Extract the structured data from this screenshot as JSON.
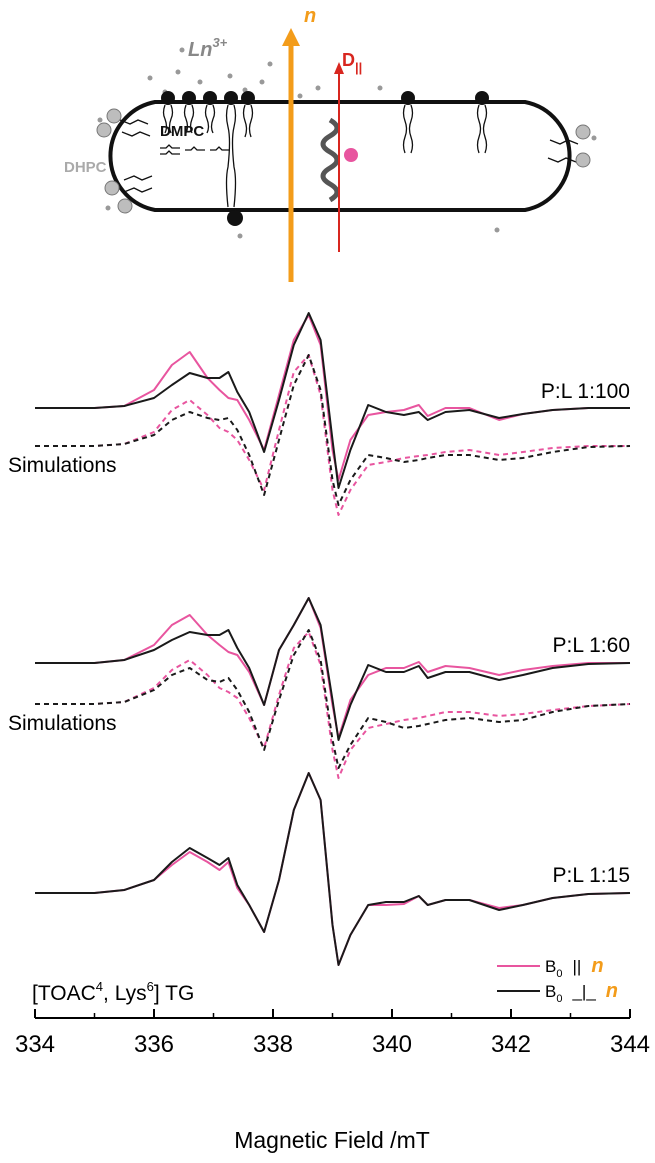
{
  "schematic": {
    "ion_label": "Ln",
    "ion_charge": "3+",
    "normal_label": "n",
    "director_label": "D",
    "director_subscript": "||",
    "dmpc": "DMPC",
    "dhpc": "DHPC"
  },
  "chart_data": {
    "type": "line",
    "xlabel": "Magnetic Field /mT",
    "xlim": [
      334,
      344
    ],
    "xticks": [
      334,
      336,
      338,
      340,
      342,
      344
    ],
    "ylim": [
      0,
      720
    ],
    "panel_labels": [
      "P:L 1:100",
      "P:L 1:60",
      "P:L 1:15"
    ],
    "simulation_label": "Simulations",
    "compound": [
      "[TOAC",
      "4",
      ", Lys",
      "6",
      "] TG"
    ],
    "legend": [
      {
        "symbol": "B",
        "subscript": "0",
        "relation": "||",
        "vector": "n",
        "color": "#e8559f"
      },
      {
        "symbol": "B",
        "subscript": "0",
        "relation": "_|_",
        "vector": "n",
        "color": "#1a1a1a"
      }
    ],
    "x": [
      334,
      335,
      335.5,
      336,
      336.3,
      336.6,
      336.9,
      337.1,
      337.25,
      337.4,
      337.6,
      337.85,
      338.1,
      338.35,
      338.6,
      338.8,
      339.0,
      339.1,
      339.3,
      339.6,
      339.9,
      340.2,
      340.45,
      340.6,
      340.9,
      341.3,
      341.8,
      342.2,
      342.7,
      343.3,
      344
    ],
    "series": [
      {
        "color": "#e8559f",
        "dashed": false,
        "values": [
          610,
          610,
          612,
          628,
          653,
          666,
          640,
          628,
          620,
          618,
          598,
          568,
          623,
          678,
          703,
          673,
          568,
          538,
          578,
          603,
          606,
          608,
          613,
          602,
          610,
          610,
          598,
          604,
          608,
          610,
          610
        ]
      },
      {
        "color": "#1a1a1a",
        "dashed": false,
        "values": [
          610,
          610,
          612,
          620,
          633,
          645,
          640,
          640,
          646,
          626,
          606,
          566,
          618,
          673,
          705,
          678,
          578,
          530,
          568,
          613,
          606,
          603,
          606,
          598,
          606,
          608,
          600,
          604,
          608,
          610,
          610
        ]
      },
      {
        "color": "#e8559f",
        "dashed": true,
        "values": [
          572,
          572,
          574,
          586,
          608,
          618,
          603,
          590,
          586,
          578,
          558,
          528,
          588,
          646,
          663,
          623,
          528,
          503,
          528,
          553,
          556,
          560,
          562,
          563,
          566,
          568,
          563,
          566,
          570,
          572,
          572
        ]
      },
      {
        "color": "#1a1a1a",
        "dashed": true,
        "values": [
          572,
          572,
          574,
          583,
          598,
          606,
          600,
          598,
          600,
          588,
          563,
          523,
          578,
          633,
          663,
          628,
          538,
          513,
          538,
          563,
          560,
          556,
          558,
          560,
          563,
          563,
          558,
          560,
          566,
          571,
          572
        ]
      },
      {
        "color": "#e8559f",
        "dashed": false,
        "values": [
          355,
          355,
          358,
          373,
          393,
          403,
          383,
          373,
          366,
          363,
          346,
          313,
          368,
          393,
          420,
          390,
          313,
          280,
          318,
          343,
          350,
          350,
          356,
          346,
          352,
          350,
          343,
          348,
          352,
          355,
          355
        ]
      },
      {
        "color": "#1a1a1a",
        "dashed": false,
        "values": [
          355,
          355,
          358,
          368,
          378,
          386,
          383,
          383,
          388,
          370,
          350,
          313,
          368,
          393,
          420,
          393,
          318,
          278,
          313,
          353,
          346,
          346,
          352,
          340,
          346,
          346,
          338,
          343,
          350,
          354,
          355
        ]
      },
      {
        "color": "#e8559f",
        "dashed": true,
        "values": [
          314,
          314,
          316,
          330,
          348,
          358,
          343,
          330,
          326,
          320,
          300,
          270,
          323,
          370,
          386,
          353,
          268,
          240,
          268,
          290,
          294,
          298,
          300,
          302,
          306,
          306,
          302,
          304,
          308,
          312,
          314
        ]
      },
      {
        "color": "#1a1a1a",
        "dashed": true,
        "values": [
          314,
          314,
          316,
          328,
          343,
          350,
          338,
          336,
          340,
          328,
          306,
          268,
          318,
          363,
          388,
          358,
          278,
          250,
          273,
          300,
          296,
          290,
          292,
          294,
          298,
          300,
          296,
          298,
          306,
          312,
          314
        ]
      },
      {
        "color": "#e8559f",
        "dashed": false,
        "values": [
          125,
          125,
          128,
          138,
          153,
          166,
          156,
          148,
          156,
          130,
          113,
          86,
          138,
          208,
          245,
          218,
          93,
          53,
          83,
          113,
          113,
          114,
          122,
          113,
          118,
          118,
          110,
          113,
          120,
          124,
          125
        ]
      },
      {
        "color": "#1a1a1a",
        "dashed": false,
        "values": [
          125,
          125,
          128,
          138,
          156,
          170,
          160,
          153,
          160,
          133,
          113,
          86,
          138,
          208,
          245,
          218,
          93,
          53,
          83,
          113,
          116,
          116,
          122,
          113,
          118,
          118,
          108,
          113,
          120,
          124,
          125
        ]
      }
    ]
  }
}
